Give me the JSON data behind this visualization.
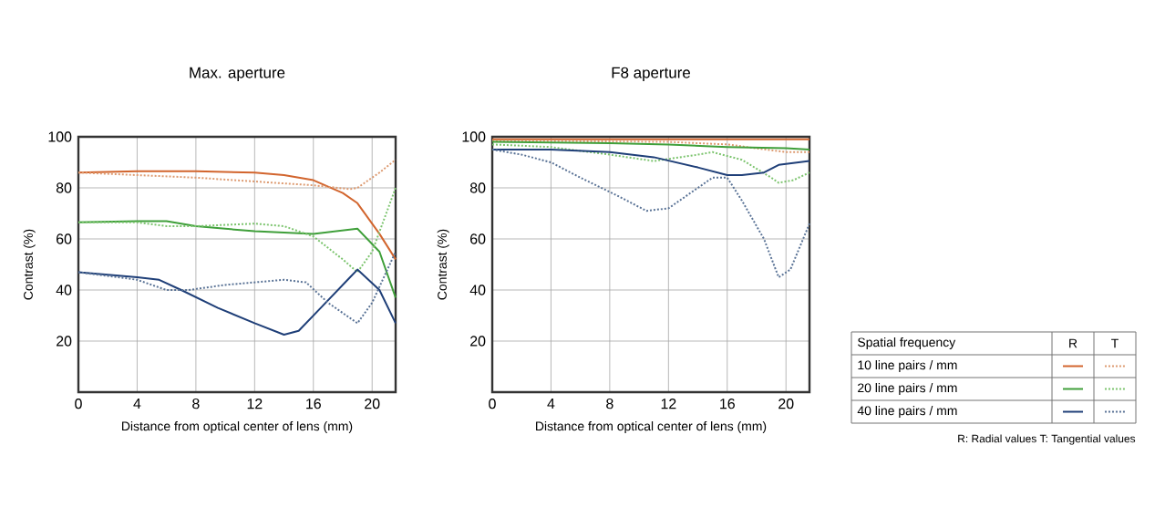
{
  "chart_data": [
    {
      "type": "line",
      "title": "Max. aperture",
      "xlabel": "Distance from optical center of lens (mm)",
      "ylabel": "Contrast (%)",
      "xlim": [
        0,
        21.6
      ],
      "ylim": [
        0,
        100
      ],
      "xticks": [
        0,
        4,
        8,
        12,
        16,
        20
      ],
      "yticks": [
        20,
        40,
        60,
        80,
        100
      ],
      "grid": true,
      "series": [
        {
          "color": "#d2652e",
          "line_style": "solid",
          "x": [
            0,
            4,
            8,
            12,
            14,
            16,
            18,
            19,
            20.5,
            21.6
          ],
          "values": [
            86,
            86.5,
            86.5,
            86,
            85,
            83,
            78,
            74,
            62,
            52
          ]
        },
        {
          "color": "#dd9a70",
          "line_style": "dotted",
          "x": [
            0,
            4,
            8,
            12,
            16,
            18.5,
            19,
            20.5,
            21.6
          ],
          "values": [
            86,
            85,
            84,
            82.5,
            81,
            79.5,
            80,
            86,
            91
          ]
        },
        {
          "color": "#3f9f3a",
          "line_style": "solid",
          "x": [
            0,
            4,
            6,
            8,
            12,
            16,
            19,
            20.5,
            21.6
          ],
          "values": [
            66.5,
            67,
            67,
            65,
            63,
            62,
            64,
            55,
            37
          ]
        },
        {
          "color": "#7cc46e",
          "line_style": "dotted",
          "x": [
            0,
            4,
            6,
            8,
            12,
            14,
            16,
            18,
            19,
            20,
            21.6
          ],
          "values": [
            66.5,
            66.5,
            65,
            65,
            66,
            65,
            61,
            52,
            47,
            55,
            80
          ]
        },
        {
          "color": "#1f3f78",
          "line_style": "solid",
          "x": [
            0,
            4,
            5.5,
            7,
            9.5,
            12,
            14,
            15,
            16.5,
            18.5,
            19,
            20.5,
            21.6
          ],
          "values": [
            47,
            45,
            44,
            40,
            33,
            27,
            22.5,
            24,
            33,
            45,
            48,
            40,
            27
          ]
        },
        {
          "color": "#5a7396",
          "line_style": "dotted",
          "x": [
            0,
            4,
            6,
            7.5,
            10,
            14,
            15.5,
            17,
            19,
            20,
            21.6
          ],
          "values": [
            47,
            44,
            40,
            40,
            42,
            44,
            43,
            35,
            27,
            35,
            55
          ]
        }
      ]
    },
    {
      "type": "line",
      "title": "F8 aperture",
      "xlabel": "Distance from optical center of lens (mm)",
      "ylabel": "Contrast (%)",
      "xlim": [
        0,
        21.6
      ],
      "ylim": [
        0,
        100
      ],
      "xticks": [
        0,
        4,
        8,
        12,
        16,
        20
      ],
      "yticks": [
        20,
        40,
        60,
        80,
        100
      ],
      "grid": true,
      "series": [
        {
          "color": "#d2652e",
          "line_style": "solid",
          "x": [
            0,
            8,
            16,
            20,
            21.6
          ],
          "values": [
            99,
            99,
            99,
            99,
            99
          ]
        },
        {
          "color": "#dd9a70",
          "line_style": "dotted",
          "x": [
            0,
            12,
            16,
            20,
            21.6
          ],
          "values": [
            98.5,
            98,
            97,
            94,
            94
          ]
        },
        {
          "color": "#3f9f3a",
          "line_style": "solid",
          "x": [
            0,
            8,
            12,
            16,
            20,
            21.6
          ],
          "values": [
            98,
            97.5,
            97,
            96,
            95.5,
            95
          ]
        },
        {
          "color": "#7cc46e",
          "line_style": "dotted",
          "x": [
            0,
            4,
            8,
            11,
            14,
            15,
            17,
            19,
            19.5,
            20.5,
            21.6
          ],
          "values": [
            97,
            96,
            93,
            90.5,
            93,
            94,
            91,
            84,
            82,
            83,
            86
          ]
        },
        {
          "color": "#1f3f78",
          "line_style": "solid",
          "x": [
            0,
            4,
            8,
            11,
            14,
            16,
            17,
            18.5,
            19.5,
            21.6
          ],
          "values": [
            95,
            95,
            94,
            92,
            88,
            85,
            85,
            86,
            89,
            90.5
          ]
        },
        {
          "color": "#5a7396",
          "line_style": "dotted",
          "x": [
            0,
            2,
            4,
            6,
            8.5,
            10.5,
            12,
            13.5,
            15,
            16,
            17,
            18.5,
            19.5,
            20.3,
            21.6
          ],
          "values": [
            95,
            93,
            90,
            84,
            77,
            71,
            72,
            78,
            84,
            84,
            75,
            60,
            45,
            48,
            66
          ]
        }
      ]
    },
    {
      "type": "other",
      "annotations": [
        "Spatial frequency",
        "R",
        "T",
        "10 line pairs / mm",
        "20 line pairs / mm",
        "40 line pairs / mm",
        "R: Radial values  T: Tangential values"
      ]
    }
  ]
}
